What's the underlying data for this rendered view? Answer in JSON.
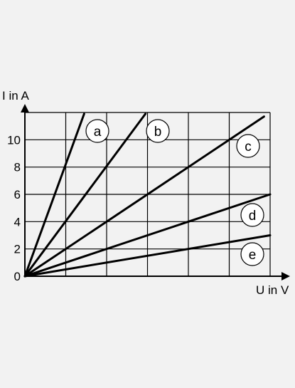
{
  "chart_data": {
    "type": "line",
    "xlabel": "U in V",
    "ylabel": "I in A",
    "x_ticks": [],
    "y_ticks": [
      "0",
      "2",
      "4",
      "6",
      "8",
      "10"
    ],
    "xlim": [
      0,
      6
    ],
    "ylim": [
      0,
      12
    ],
    "x_grid_lines": 6,
    "grid": true,
    "colors": {
      "line": "#000000",
      "grid": "#000000",
      "background": "#f2f2f2",
      "label_fill": "#ffffff"
    },
    "series": [
      {
        "label": "a",
        "points": [
          [
            0,
            0
          ],
          [
            1.45,
            11.9
          ]
        ]
      },
      {
        "label": "b",
        "points": [
          [
            0,
            0
          ],
          [
            2.95,
            11.9
          ]
        ]
      },
      {
        "label": "c",
        "points": [
          [
            0,
            0
          ],
          [
            5.85,
            11.7
          ]
        ]
      },
      {
        "label": "d",
        "points": [
          [
            0,
            0
          ],
          [
            6,
            6
          ]
        ]
      },
      {
        "label": "e",
        "points": [
          [
            0,
            0
          ],
          [
            6,
            3
          ]
        ]
      }
    ]
  }
}
